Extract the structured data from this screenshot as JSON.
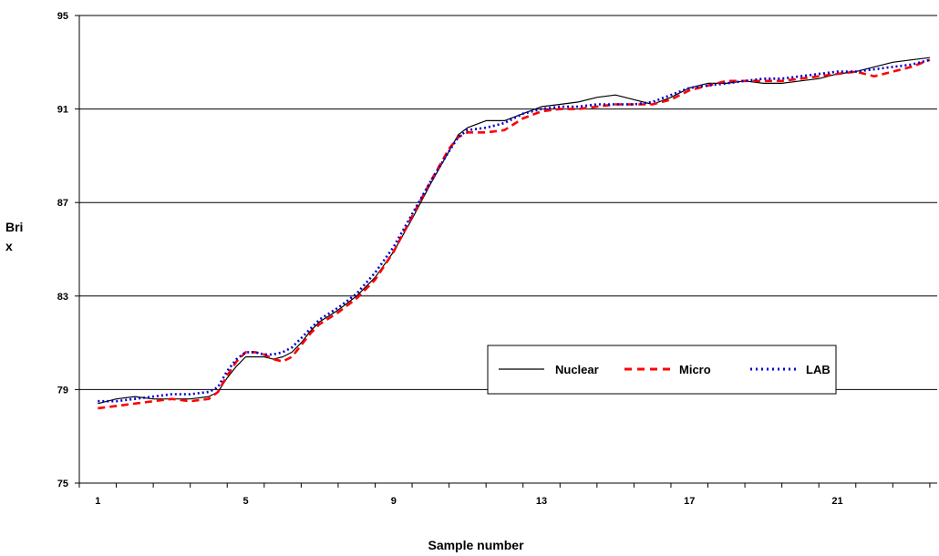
{
  "chart_data": {
    "type": "line",
    "xlabel": "Sample number",
    "ylabel_lines": [
      "Bri",
      "x"
    ],
    "ylim": [
      75,
      95
    ],
    "yticks": [
      75,
      79,
      83,
      87,
      91,
      95
    ],
    "xlim": [
      0.5,
      23.7
    ],
    "xticks": [
      1,
      5,
      9,
      13,
      17,
      21
    ],
    "x_minor_ticks": [
      1,
      2,
      3,
      4,
      5,
      6,
      7,
      8,
      9,
      10,
      11,
      12,
      13,
      14,
      15,
      16,
      17,
      18,
      19,
      20,
      21,
      22,
      23
    ],
    "grid": "horizontal",
    "legend_position": "inside, lower-right",
    "series": [
      {
        "name": "Nuclear",
        "color": "#000000",
        "style": "solid",
        "points": [
          [
            1,
            78.4
          ],
          [
            1.5,
            78.6
          ],
          [
            2,
            78.7
          ],
          [
            2.5,
            78.6
          ],
          [
            3,
            78.6
          ],
          [
            3.5,
            78.6
          ],
          [
            4,
            78.7
          ],
          [
            4.25,
            78.9
          ],
          [
            4.5,
            79.5
          ],
          [
            4.75,
            80.0
          ],
          [
            5,
            80.4
          ],
          [
            5.25,
            80.4
          ],
          [
            5.5,
            80.4
          ],
          [
            5.75,
            80.3
          ],
          [
            6,
            80.4
          ],
          [
            6.25,
            80.6
          ],
          [
            6.5,
            81.0
          ],
          [
            6.75,
            81.5
          ],
          [
            7,
            81.9
          ],
          [
            7.5,
            82.4
          ],
          [
            8,
            83.0
          ],
          [
            8.5,
            83.8
          ],
          [
            9,
            84.9
          ],
          [
            9.5,
            86.3
          ],
          [
            10,
            87.8
          ],
          [
            10.5,
            89.2
          ],
          [
            10.75,
            89.9
          ],
          [
            11,
            90.2
          ],
          [
            11.5,
            90.5
          ],
          [
            12,
            90.5
          ],
          [
            12.5,
            90.8
          ],
          [
            13,
            91.1
          ],
          [
            13.5,
            91.2
          ],
          [
            14,
            91.3
          ],
          [
            14.5,
            91.5
          ],
          [
            15,
            91.6
          ],
          [
            15.5,
            91.4
          ],
          [
            16,
            91.2
          ],
          [
            16.5,
            91.5
          ],
          [
            17,
            91.9
          ],
          [
            17.5,
            92.1
          ],
          [
            18,
            92.1
          ],
          [
            18.5,
            92.2
          ],
          [
            19,
            92.1
          ],
          [
            19.5,
            92.1
          ],
          [
            20,
            92.2
          ],
          [
            20.5,
            92.3
          ],
          [
            21,
            92.5
          ],
          [
            21.5,
            92.6
          ],
          [
            22,
            92.8
          ],
          [
            22.5,
            93.0
          ],
          [
            23,
            93.1
          ],
          [
            23.5,
            93.2
          ]
        ]
      },
      {
        "name": "Micro",
        "color": "#ff0000",
        "style": "dashed",
        "points": [
          [
            1,
            78.2
          ],
          [
            1.5,
            78.3
          ],
          [
            2,
            78.4
          ],
          [
            2.5,
            78.5
          ],
          [
            3,
            78.6
          ],
          [
            3.5,
            78.5
          ],
          [
            4,
            78.6
          ],
          [
            4.25,
            78.9
          ],
          [
            4.5,
            79.6
          ],
          [
            4.75,
            80.2
          ],
          [
            5,
            80.6
          ],
          [
            5.25,
            80.6
          ],
          [
            5.5,
            80.5
          ],
          [
            5.75,
            80.3
          ],
          [
            6,
            80.2
          ],
          [
            6.25,
            80.4
          ],
          [
            6.5,
            80.9
          ],
          [
            6.75,
            81.4
          ],
          [
            7,
            81.8
          ],
          [
            7.5,
            82.3
          ],
          [
            8,
            82.9
          ],
          [
            8.5,
            83.7
          ],
          [
            9,
            84.9
          ],
          [
            9.5,
            86.4
          ],
          [
            10,
            87.9
          ],
          [
            10.5,
            89.3
          ],
          [
            10.75,
            89.8
          ],
          [
            11,
            90.0
          ],
          [
            11.5,
            90.0
          ],
          [
            12,
            90.1
          ],
          [
            12.5,
            90.6
          ],
          [
            13,
            90.9
          ],
          [
            13.5,
            91.0
          ],
          [
            14,
            91.0
          ],
          [
            14.5,
            91.1
          ],
          [
            15,
            91.2
          ],
          [
            15.5,
            91.2
          ],
          [
            16,
            91.2
          ],
          [
            16.5,
            91.4
          ],
          [
            17,
            91.8
          ],
          [
            17.5,
            92.0
          ],
          [
            18,
            92.2
          ],
          [
            18.5,
            92.2
          ],
          [
            19,
            92.2
          ],
          [
            19.5,
            92.2
          ],
          [
            20,
            92.3
          ],
          [
            20.5,
            92.4
          ],
          [
            21,
            92.5
          ],
          [
            21.5,
            92.6
          ],
          [
            22,
            92.4
          ],
          [
            22.5,
            92.6
          ],
          [
            23,
            92.8
          ],
          [
            23.5,
            93.1
          ]
        ]
      },
      {
        "name": "LAB",
        "color": "#0000cc",
        "style": "dotted",
        "points": [
          [
            1,
            78.5
          ],
          [
            1.5,
            78.5
          ],
          [
            2,
            78.6
          ],
          [
            2.5,
            78.7
          ],
          [
            3,
            78.8
          ],
          [
            3.5,
            78.8
          ],
          [
            4,
            78.9
          ],
          [
            4.25,
            79.1
          ],
          [
            4.5,
            79.8
          ],
          [
            4.75,
            80.3
          ],
          [
            5,
            80.6
          ],
          [
            5.25,
            80.6
          ],
          [
            5.5,
            80.5
          ],
          [
            5.75,
            80.5
          ],
          [
            6,
            80.6
          ],
          [
            6.25,
            80.8
          ],
          [
            6.5,
            81.2
          ],
          [
            6.75,
            81.6
          ],
          [
            7,
            82.0
          ],
          [
            7.5,
            82.5
          ],
          [
            8,
            83.1
          ],
          [
            8.5,
            84.0
          ],
          [
            9,
            85.1
          ],
          [
            9.5,
            86.5
          ],
          [
            10,
            87.9
          ],
          [
            10.5,
            89.2
          ],
          [
            10.75,
            89.8
          ],
          [
            11,
            90.1
          ],
          [
            11.5,
            90.2
          ],
          [
            12,
            90.4
          ],
          [
            12.5,
            90.8
          ],
          [
            13,
            91.0
          ],
          [
            13.5,
            91.1
          ],
          [
            14,
            91.1
          ],
          [
            14.5,
            91.2
          ],
          [
            15,
            91.2
          ],
          [
            15.5,
            91.2
          ],
          [
            16,
            91.3
          ],
          [
            16.5,
            91.6
          ],
          [
            17,
            91.9
          ],
          [
            17.5,
            92.0
          ],
          [
            18,
            92.1
          ],
          [
            18.5,
            92.2
          ],
          [
            19,
            92.3
          ],
          [
            19.5,
            92.3
          ],
          [
            20,
            92.4
          ],
          [
            20.5,
            92.5
          ],
          [
            21,
            92.6
          ],
          [
            21.5,
            92.6
          ],
          [
            22,
            92.7
          ],
          [
            22.5,
            92.8
          ],
          [
            23,
            92.9
          ],
          [
            23.5,
            93.1
          ]
        ]
      }
    ]
  }
}
